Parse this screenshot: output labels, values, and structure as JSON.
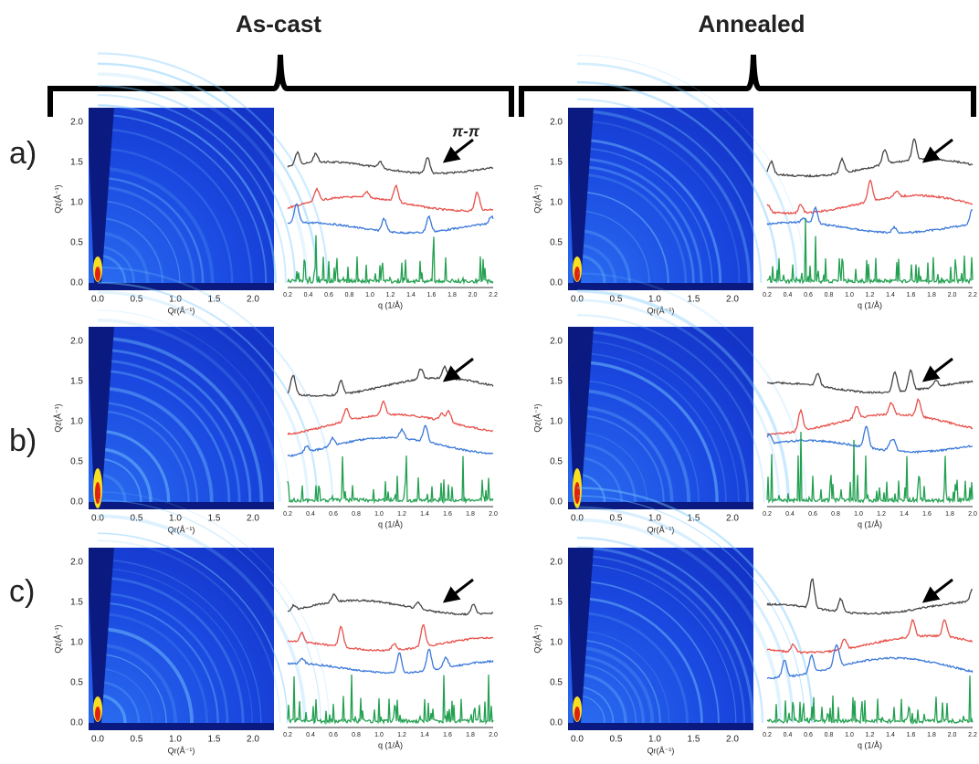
{
  "headers": [
    "As-cast",
    "Annealed"
  ],
  "annotation": "π-π",
  "giwaxs": {
    "qz_label": "Qz(Å⁻¹)",
    "qr_label": "Qr(Å⁻¹)",
    "ticks": [
      "0.0",
      "0.5",
      "1.0",
      "1.5",
      "2.0"
    ]
  },
  "profile_xlabel": "q (1/Å)",
  "rows": [
    {
      "label": "a)",
      "as_cast_qticks": [
        "0.2",
        "0.4",
        "0.6",
        "0.8",
        "1.0",
        "1.2",
        "1.4",
        "1.6",
        "1.8",
        "2.0",
        "2.2"
      ],
      "annealed_qticks": [
        "0.2",
        "0.4",
        "0.6",
        "0.8",
        "1.0",
        "1.2",
        "1.4",
        "1.6",
        "1.8",
        "2.0",
        "2.2"
      ]
    },
    {
      "label": "b)",
      "as_cast_qticks": [
        "0.2",
        "0.4",
        "0.6",
        "0.8",
        "1.0",
        "1.2",
        "1.4",
        "1.6",
        "1.8",
        "2.0"
      ],
      "annealed_qticks": [
        "0.2",
        "0.4",
        "0.6",
        "0.8",
        "1.0",
        "1.2",
        "1.4",
        "1.6",
        "1.8",
        "2.0"
      ]
    },
    {
      "label": "c)",
      "as_cast_qticks": [
        "0.2",
        "0.4",
        "0.6",
        "0.8",
        "1.0",
        "1.2",
        "1.4",
        "1.6",
        "1.8",
        "2.0"
      ],
      "annealed_qticks": [
        "0.2",
        "0.4",
        "0.6",
        "0.8",
        "1.0",
        "1.2",
        "1.4",
        "1.6",
        "1.8",
        "2.0",
        "2.2"
      ]
    }
  ]
}
